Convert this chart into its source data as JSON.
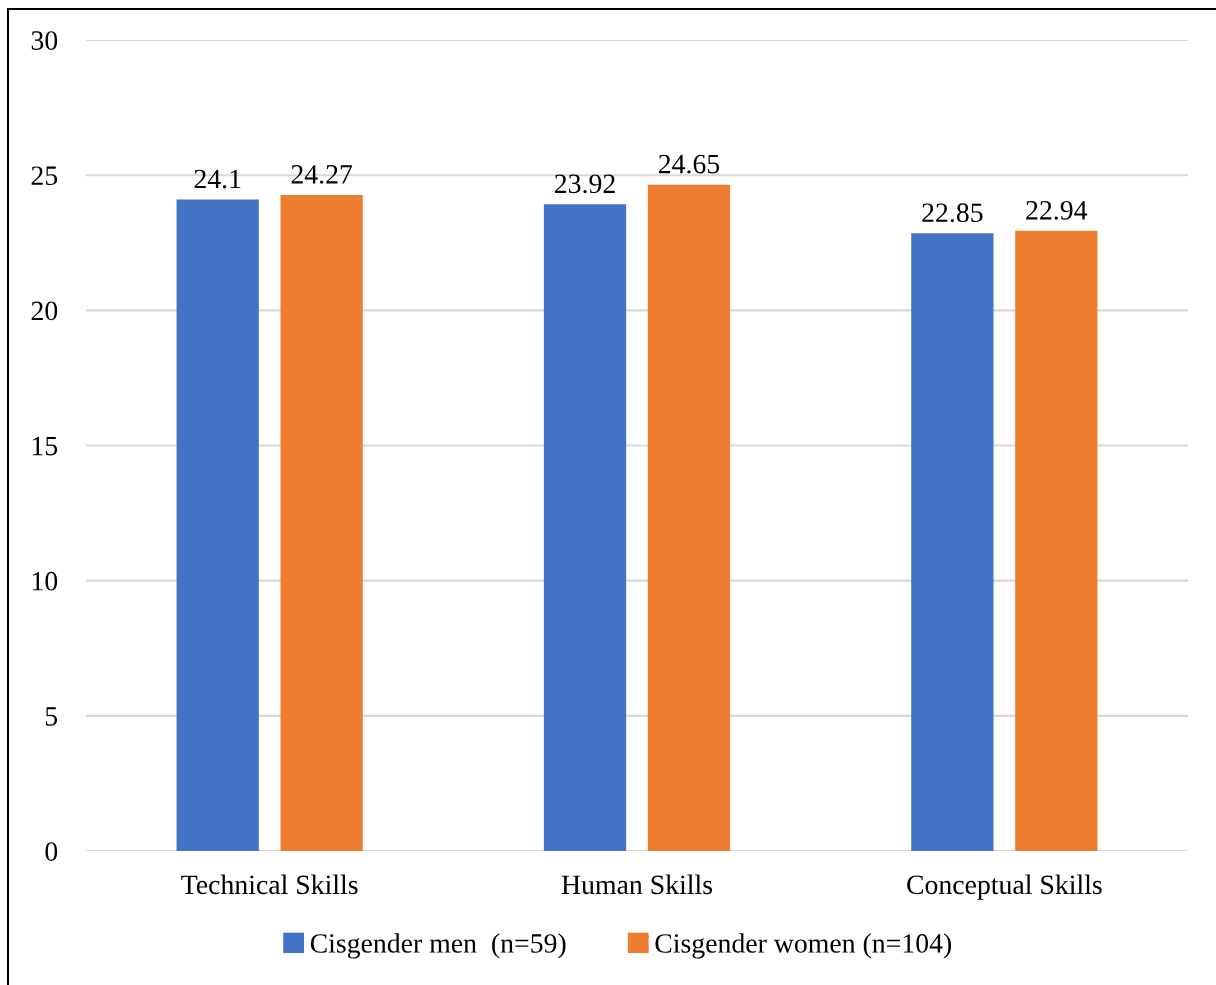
{
  "chart_data": {
    "type": "bar",
    "categories": [
      "Technical Skills",
      "Human Skills",
      "Conceptual Skills"
    ],
    "series": [
      {
        "name": "Cisgender men  (n=59)",
        "color": "#4472c4",
        "values": [
          24.1,
          23.92,
          22.85
        ]
      },
      {
        "name": "Cisgender women (n=104)",
        "color": "#ed7d31",
        "values": [
          24.27,
          24.65,
          22.94
        ]
      }
    ],
    "ylim": [
      0,
      30
    ],
    "yticks": [
      0,
      5,
      10,
      15,
      20,
      25,
      30
    ],
    "grid": "y",
    "legend": "bottom",
    "data_labels": true
  }
}
